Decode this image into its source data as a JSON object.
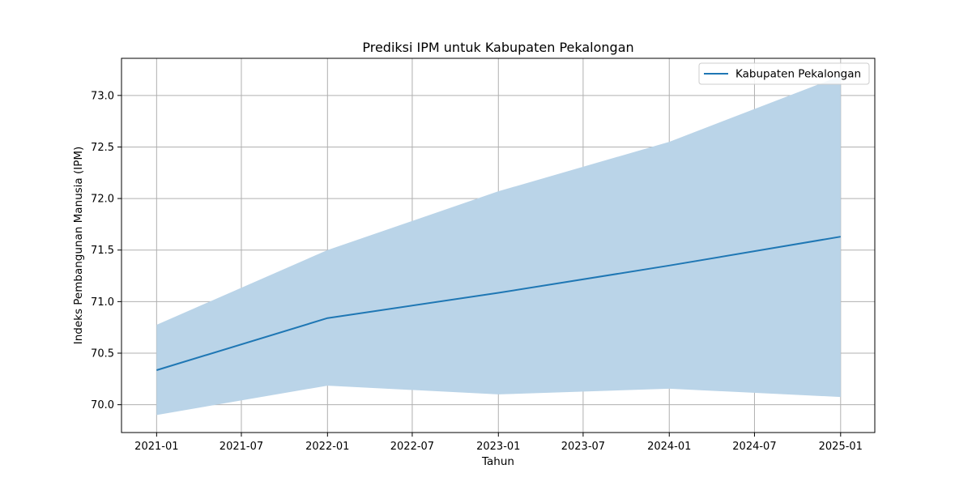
{
  "chart_data": {
    "type": "line",
    "title": "Prediksi IPM untuk Kabupaten Pekalongan",
    "xlabel": "Tahun",
    "ylabel": "Indeks Pembangunan Manusia (IPM)",
    "x": [
      "2021-01-01",
      "2022-01-01",
      "2023-01-01",
      "2024-01-01",
      "2025-01-01"
    ],
    "series": [
      {
        "name": "Kabupaten Pekalongan",
        "color": "#1f77b4",
        "values": [
          70.335,
          70.84,
          71.085,
          71.35,
          71.63
        ],
        "lower": [
          69.9,
          70.185,
          70.1,
          70.155,
          70.075
        ],
        "upper": [
          70.775,
          71.5,
          72.07,
          72.55,
          73.19
        ]
      }
    ],
    "band_color": "#bad4e8",
    "xlim": [
      "2020-10-18",
      "2025-03-15"
    ],
    "ylim": [
      69.73,
      73.36
    ],
    "x_ticks": [
      "2021-01",
      "2021-07",
      "2022-01",
      "2022-07",
      "2023-01",
      "2023-07",
      "2024-01",
      "2024-07",
      "2025-01"
    ],
    "y_ticks": [
      "70.0",
      "70.5",
      "71.0",
      "71.5",
      "72.0",
      "72.5",
      "73.0"
    ],
    "grid": true,
    "legend": "top-right"
  }
}
